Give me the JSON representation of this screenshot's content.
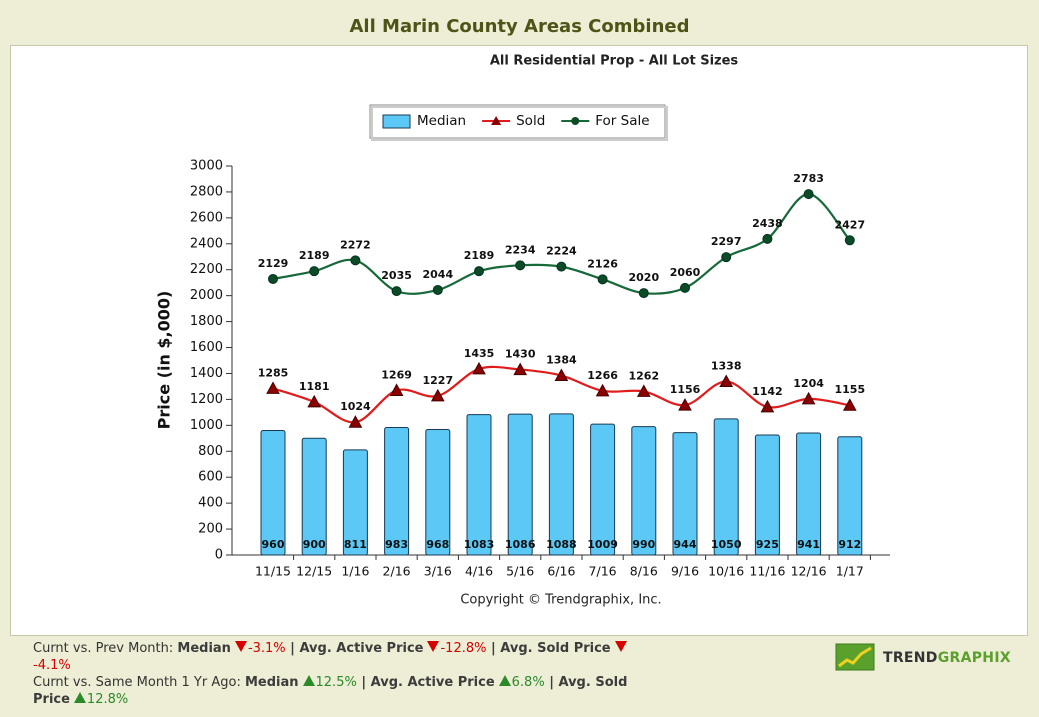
{
  "chart_data": {
    "type": "bar_line",
    "title": "All Marin County Areas Combined",
    "subtitle": "All Residential Prop - All Lot Sizes",
    "y_label": "Price (in $,000)",
    "annotation": "Copyright © Trendgraphix, Inc.",
    "categories": [
      "11/15",
      "12/15",
      "1/16",
      "2/16",
      "3/16",
      "4/16",
      "5/16",
      "6/16",
      "7/16",
      "8/16",
      "9/16",
      "10/16",
      "11/16",
      "12/16",
      "1/17"
    ],
    "series": [
      {
        "name": "Median",
        "type": "bar",
        "color": "#5bc8f5",
        "values": [
          960,
          900,
          811,
          983,
          968,
          1083,
          1086,
          1088,
          1009,
          990,
          944,
          1050,
          925,
          941,
          912
        ]
      },
      {
        "name": "Sold",
        "type": "line",
        "color": "#e01c1c",
        "marker_color": "#8b0000",
        "marker": "triangle",
        "values": [
          1285,
          1181,
          1024,
          1269,
          1227,
          1435,
          1430,
          1384,
          1266,
          1262,
          1156,
          1338,
          1142,
          1204,
          1155
        ]
      },
      {
        "name": "For Sale",
        "type": "line",
        "color": "#17693a",
        "marker_color": "#0d4a26",
        "marker": "circle",
        "values": [
          2129,
          2189,
          2272,
          2035,
          2044,
          2189,
          2234,
          2224,
          2126,
          2020,
          2060,
          2297,
          2438,
          2783,
          2427
        ]
      }
    ],
    "ylim": [
      0,
      3000
    ],
    "yticks": [
      0,
      200,
      400,
      600,
      800,
      1000,
      1200,
      1400,
      1600,
      1800,
      2000,
      2200,
      2400,
      2600,
      2800,
      3000
    ]
  },
  "footer": {
    "lines": [
      [
        {
          "text": "Curnt vs. Prev Month: ",
          "style": "plain"
        },
        {
          "text": "Median",
          "style": "bold"
        },
        {
          "text": "-3.1%",
          "style": "down"
        },
        {
          "text": " | Avg. Active Price",
          "style": "bold"
        },
        {
          "text": "-12.8%",
          "style": "down"
        },
        {
          "text": " | Avg. Sold Price",
          "style": "bold"
        },
        {
          "text": "-4.1%",
          "style": "down"
        }
      ],
      [
        {
          "text": "Curnt vs. Same Month 1 Yr Ago: ",
          "style": "plain"
        },
        {
          "text": "Median",
          "style": "bold"
        },
        {
          "text": "12.5%",
          "style": "up"
        },
        {
          "text": " | Avg. Active Price",
          "style": "bold"
        },
        {
          "text": "6.8%",
          "style": "up"
        },
        {
          "text": " | Avg. Sold Price",
          "style": "bold"
        },
        {
          "text": "12.8%",
          "style": "up"
        }
      ]
    ],
    "logo": [
      "TREND",
      "GRAPHIX"
    ]
  }
}
